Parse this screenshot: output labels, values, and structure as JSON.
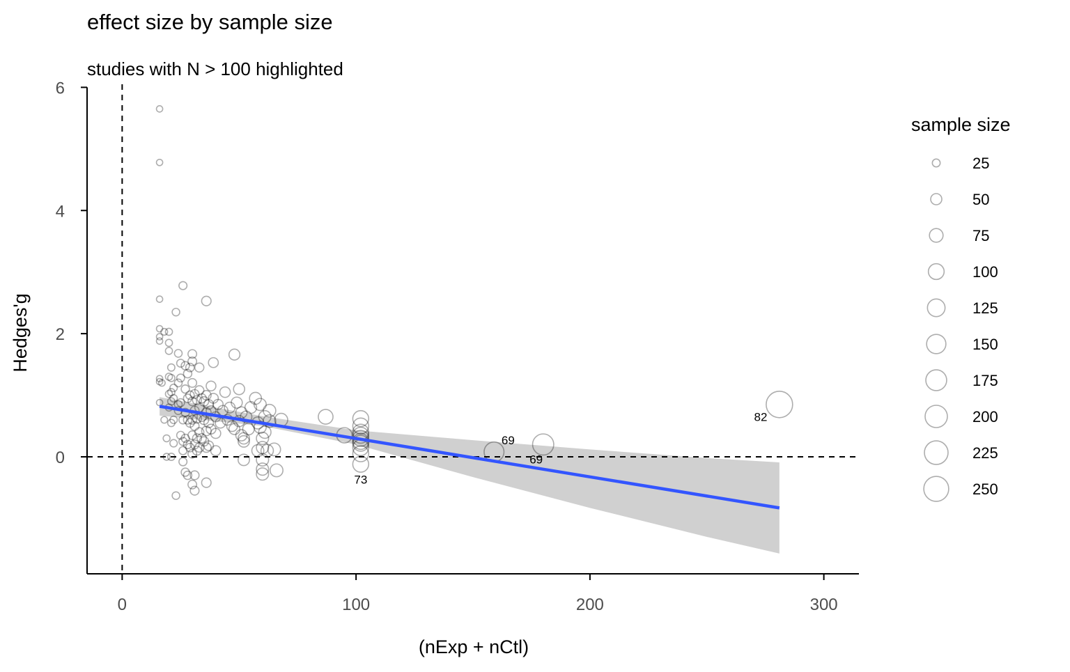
{
  "chart_data": {
    "type": "scatter",
    "title": "effect size by sample size",
    "subtitle": "studies with N > 100 highlighted",
    "xlabel": "(nExp + nCtl)",
    "ylabel": "Hedges'g",
    "xlim": [
      -15,
      315
    ],
    "ylim": [
      -1.9,
      6.05
    ],
    "x_ticks": [
      0,
      100,
      200,
      300
    ],
    "x_tick_labels": [
      "0",
      "100",
      "200",
      "300"
    ],
    "y_ticks": [
      0,
      2,
      4,
      6
    ],
    "y_tick_labels": [
      "0",
      "2",
      "4",
      "6"
    ],
    "reference_lines": {
      "x": 0,
      "y": 0,
      "style": "dashed"
    },
    "grid": false,
    "legend": {
      "title": "sample size",
      "position": "right",
      "sizes": [
        25,
        50,
        75,
        100,
        125,
        150,
        175,
        200,
        225,
        250
      ],
      "labels": [
        "25",
        "50",
        "75",
        "100",
        "125",
        "150",
        "175",
        "200",
        "225",
        "250"
      ]
    },
    "regression": {
      "method": "linear",
      "color": "#3355FF",
      "ribbon_color": "#D0D0D0",
      "line": [
        [
          16,
          0.82
        ],
        [
          281,
          -0.83
        ]
      ],
      "ribbon": [
        {
          "x": 16,
          "lo": 0.67,
          "hi": 0.97
        },
        {
          "x": 60,
          "lo": 0.5,
          "hi": 0.66
        },
        {
          "x": 100,
          "lo": 0.2,
          "hi": 0.43
        },
        {
          "x": 150,
          "lo": -0.33,
          "hi": 0.27
        },
        {
          "x": 200,
          "lo": -0.83,
          "hi": 0.12
        },
        {
          "x": 250,
          "lo": -1.3,
          "hi": -0.02
        },
        {
          "x": 281,
          "lo": -1.57,
          "hi": -0.09
        }
      ]
    },
    "highlighted": [
      {
        "x": 102,
        "y": 0.25,
        "n": 102,
        "label": "73",
        "label_pos": [
          102,
          -0.37
        ]
      },
      {
        "x": 159,
        "y": 0.08,
        "n": 159,
        "label": "69",
        "label_pos": [
          165,
          0.27
        ]
      },
      {
        "x": 180,
        "y": 0.2,
        "n": 180,
        "label": "69",
        "label_pos": [
          177,
          -0.04
        ]
      },
      {
        "x": 281,
        "y": 0.85,
        "n": 281,
        "label": "82",
        "label_pos": [
          273,
          0.65
        ]
      }
    ],
    "points": [
      [
        16,
        5.65
      ],
      [
        16,
        4.78
      ],
      [
        16,
        2.56
      ],
      [
        16,
        2.08
      ],
      [
        16,
        1.95
      ],
      [
        16,
        1.88
      ],
      [
        16,
        1.27
      ],
      [
        16,
        1.22
      ],
      [
        16,
        0.88
      ],
      [
        17,
        1.2
      ],
      [
        18,
        0.6
      ],
      [
        18,
        2.03
      ],
      [
        19,
        0.3
      ],
      [
        19,
        0.0
      ],
      [
        20,
        1.3
      ],
      [
        20,
        1.02
      ],
      [
        20,
        0.8
      ],
      [
        20,
        1.85
      ],
      [
        20,
        2.03
      ],
      [
        20,
        1.72
      ],
      [
        21,
        1.45
      ],
      [
        21,
        1.28
      ],
      [
        21,
        1.05
      ],
      [
        21,
        0.9
      ],
      [
        21,
        0.55
      ],
      [
        21,
        0.0
      ],
      [
        22,
        0.22
      ],
      [
        22,
        0.6
      ],
      [
        22,
        0.95
      ],
      [
        22,
        1.12
      ],
      [
        23,
        2.35
      ],
      [
        23,
        -0.63
      ],
      [
        24,
        0.75
      ],
      [
        24,
        0.85
      ],
      [
        24,
        1.2
      ],
      [
        24,
        1.68
      ],
      [
        25,
        1.28
      ],
      [
        25,
        1.52
      ],
      [
        25,
        0.35
      ],
      [
        25,
        0.88
      ],
      [
        26,
        2.78
      ],
      [
        26,
        0.25
      ],
      [
        26,
        0.6
      ],
      [
        26,
        0.1
      ],
      [
        26,
        -0.08
      ],
      [
        27,
        1.48
      ],
      [
        27,
        1.1
      ],
      [
        27,
        0.72
      ],
      [
        27,
        0.3
      ],
      [
        27,
        -0.25
      ],
      [
        28,
        1.35
      ],
      [
        28,
        0.95
      ],
      [
        28,
        0.6
      ],
      [
        28,
        0.2
      ],
      [
        28,
        -0.3
      ],
      [
        29,
        1.45
      ],
      [
        29,
        1.0
      ],
      [
        29,
        0.55
      ],
      [
        29,
        0.15
      ],
      [
        30,
        1.67
      ],
      [
        30,
        1.55
      ],
      [
        30,
        1.2
      ],
      [
        30,
        0.9
      ],
      [
        30,
        0.6
      ],
      [
        30,
        0.35
      ],
      [
        30,
        0.05
      ],
      [
        30,
        -0.45
      ],
      [
        31,
        1.02
      ],
      [
        31,
        0.75
      ],
      [
        31,
        0.5
      ],
      [
        31,
        0.2
      ],
      [
        31,
        -0.3
      ],
      [
        31,
        -0.55
      ],
      [
        32,
        0.92
      ],
      [
        32,
        0.62
      ],
      [
        32,
        0.3
      ],
      [
        32,
        0.1
      ],
      [
        33,
        1.45
      ],
      [
        33,
        1.08
      ],
      [
        33,
        0.8
      ],
      [
        33,
        0.4
      ],
      [
        33,
        0.15
      ],
      [
        34,
        0.95
      ],
      [
        34,
        0.65
      ],
      [
        34,
        0.3
      ],
      [
        35,
        0.9
      ],
      [
        35,
        0.6
      ],
      [
        35,
        0.25
      ],
      [
        36,
        2.53
      ],
      [
        36,
        1.0
      ],
      [
        36,
        0.72
      ],
      [
        36,
        0.42
      ],
      [
        36,
        0.15
      ],
      [
        36,
        -0.42
      ],
      [
        37,
        0.85
      ],
      [
        37,
        0.55
      ],
      [
        37,
        0.18
      ],
      [
        38,
        1.15
      ],
      [
        38,
        0.75
      ],
      [
        38,
        0.45
      ],
      [
        39,
        1.53
      ],
      [
        39,
        0.95
      ],
      [
        40,
        0.65
      ],
      [
        40,
        0.38
      ],
      [
        40,
        0.1
      ],
      [
        41,
        0.85
      ],
      [
        42,
        0.55
      ],
      [
        43,
        0.75
      ],
      [
        44,
        1.05
      ],
      [
        45,
        0.6
      ],
      [
        46,
        0.8
      ],
      [
        47,
        0.5
      ],
      [
        48,
        0.45
      ],
      [
        48,
        1.66
      ],
      [
        49,
        0.88
      ],
      [
        50,
        1.1
      ],
      [
        50,
        0.58
      ],
      [
        51,
        0.35
      ],
      [
        51,
        0.72
      ],
      [
        52,
        0.3
      ],
      [
        52,
        0.25
      ],
      [
        52,
        -0.05
      ],
      [
        53,
        0.65
      ],
      [
        54,
        0.45
      ],
      [
        55,
        0.8
      ],
      [
        57,
        0.95
      ],
      [
        58,
        0.55
      ],
      [
        58,
        0.1
      ],
      [
        59,
        0.85
      ],
      [
        59,
        0.48
      ],
      [
        60,
        0.3
      ],
      [
        60,
        0.15
      ],
      [
        60,
        -0.05
      ],
      [
        60,
        -0.2
      ],
      [
        60,
        -0.28
      ],
      [
        61,
        0.65
      ],
      [
        61,
        0.4
      ],
      [
        62,
        0.1
      ],
      [
        63,
        0.75
      ],
      [
        63,
        0.58
      ],
      [
        65,
        0.12
      ],
      [
        66,
        -0.22
      ],
      [
        68,
        0.6
      ],
      [
        87,
        0.65
      ],
      [
        95,
        0.35
      ],
      [
        102,
        0.62
      ],
      [
        102,
        0.5
      ],
      [
        102,
        0.4
      ],
      [
        102,
        0.35
      ],
      [
        102,
        0.3
      ],
      [
        102,
        0.22
      ],
      [
        102,
        0.15
      ],
      [
        102,
        0.05
      ],
      [
        102,
        -0.12
      ]
    ]
  }
}
